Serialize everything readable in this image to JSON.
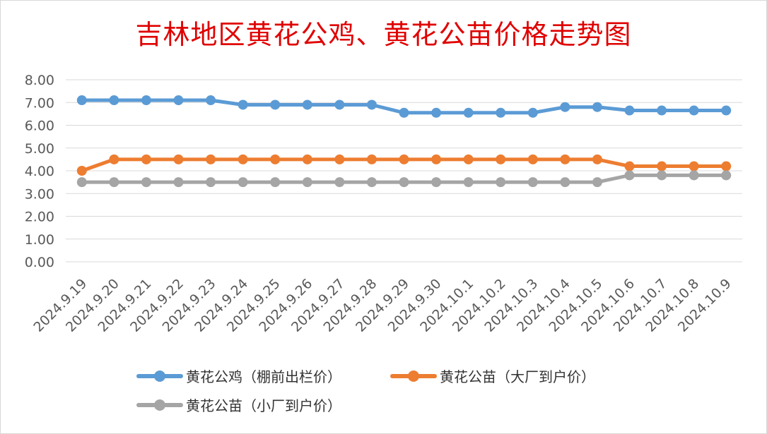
{
  "title": "吉林地区黄花公鸡、黄花公苗价格走势图",
  "chart_data": {
    "type": "line",
    "title": "吉林地区黄花公鸡、黄花公苗价格走势图",
    "categories": [
      "2024.9.19",
      "2024.9.20",
      "2024.9.21",
      "2024.9.22",
      "2024.9.23",
      "2024.9.24",
      "2024.9.25",
      "2024.9.26",
      "2024.9.27",
      "2024.9.28",
      "2024.9.29",
      "2024.9.30",
      "2024.10.1",
      "2024.10.2",
      "2024.10.3",
      "2024.10.4",
      "2024.10.5",
      "2024.10.6",
      "2024.10.7",
      "2024.10.8",
      "2024.10.9"
    ],
    "ylim": [
      0,
      8
    ],
    "yticks": [
      "0.00",
      "1.00",
      "2.00",
      "3.00",
      "4.00",
      "5.00",
      "6.00",
      "7.00",
      "8.00"
    ],
    "grid": true,
    "legend_position": "bottom",
    "series": [
      {
        "name": "黄花公鸡（棚前出栏价）",
        "color": "#5b9bd5",
        "values": [
          7.1,
          7.1,
          7.1,
          7.1,
          7.1,
          6.9,
          6.9,
          6.9,
          6.9,
          6.9,
          6.55,
          6.55,
          6.55,
          6.55,
          6.55,
          6.8,
          6.8,
          6.65,
          6.65,
          6.65,
          6.65
        ]
      },
      {
        "name": "黄花公苗（大厂到户价）",
        "color": "#ed7d31",
        "values": [
          4.0,
          4.5,
          4.5,
          4.5,
          4.5,
          4.5,
          4.5,
          4.5,
          4.5,
          4.5,
          4.5,
          4.5,
          4.5,
          4.5,
          4.5,
          4.5,
          4.5,
          4.2,
          4.2,
          4.2,
          4.2
        ]
      },
      {
        "name": "黄花公苗（小厂到户价）",
        "color": "#a5a5a5",
        "values": [
          3.5,
          3.5,
          3.5,
          3.5,
          3.5,
          3.5,
          3.5,
          3.5,
          3.5,
          3.5,
          3.5,
          3.5,
          3.5,
          3.5,
          3.5,
          3.5,
          3.5,
          3.8,
          3.8,
          3.8,
          3.8
        ]
      }
    ]
  }
}
